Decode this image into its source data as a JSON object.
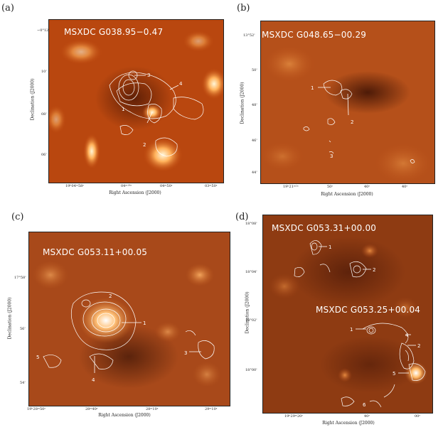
{
  "panels": [
    {
      "label": "(a)",
      "title": "MSXDC  G038.95−0.47",
      "xlabel": "Right Ascension (J2000)",
      "ylabel": "Declination (J2000)",
      "yticks": [
        "−0°12'",
        "10'",
        "08'",
        "06'"
      ],
      "xticks": [
        "19ʰ04ᵐ58ˢ",
        "04ᵐ¹⁴ˢ",
        "04ᵐ50ˢ",
        "03ᵐ50ˢ"
      ],
      "sources": [
        "1",
        "2",
        "3",
        "4"
      ]
    },
    {
      "label": "(b)",
      "title": "MSXDC  G048.65−00.29",
      "xlabel": "Right Ascension (J2000)",
      "ylabel": "Declination (J2000)",
      "yticks": [
        "13°52'",
        "50'",
        "48'",
        "46'",
        "44'"
      ],
      "xticks": [
        "19ʰ21ᵐ¹ˢ",
        "50ˢ",
        "40ˢ",
        "40ˢ"
      ],
      "sources": [
        "1",
        "2",
        "3"
      ]
    },
    {
      "label": "(c)",
      "title": "MSXDC  G053.11+00.05",
      "xlabel": "Right Ascension (J2000)",
      "ylabel": "Declination (J2000)",
      "yticks": [
        "17°58'",
        "56'",
        "54'"
      ],
      "xticks": [
        "19ʰ28ᵐ50ˢ",
        "28ᵐ40ˢ",
        "28ᵐ10ˢ",
        "29ᵐ10ˢ"
      ],
      "sources": [
        "1",
        "2",
        "3",
        "4",
        "5"
      ]
    },
    {
      "label": "(d)",
      "title": "MSXDC  G053.31+00.00",
      "title2": "MSXDC  G053.25+00.04",
      "xlabel": "Right Ascension (J2000)",
      "ylabel": "Declination (J2000)",
      "yticks": [
        "18°08'",
        "18°04'",
        "18°02'",
        "18°00'"
      ],
      "xticks": [
        "19ʰ29ᵐ20ˢ",
        "40ˢ",
        "00ˢ"
      ],
      "sources": [
        "1",
        "2",
        "3",
        "4",
        "5",
        "6"
      ]
    }
  ]
}
